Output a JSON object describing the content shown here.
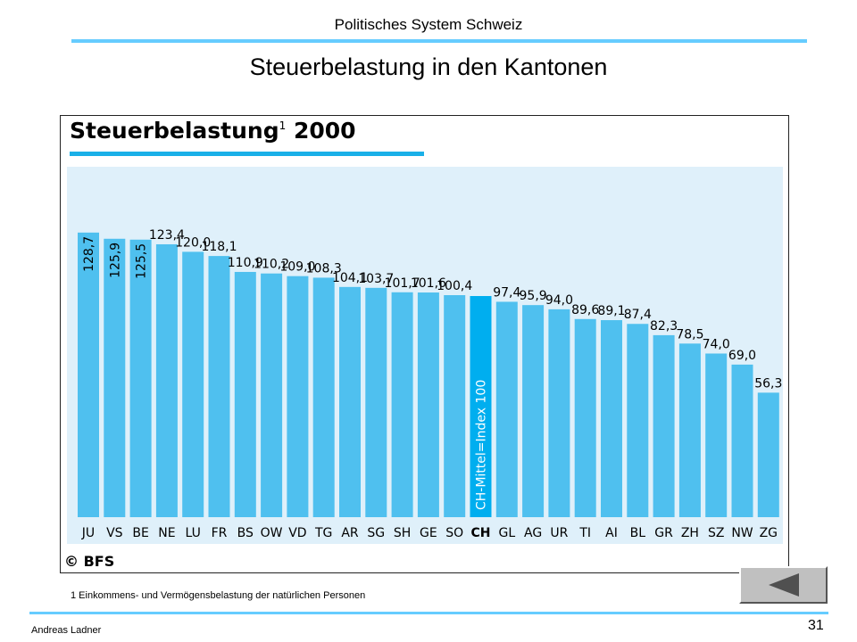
{
  "header": {
    "title": "Politisches System Schweiz"
  },
  "slide": {
    "title": "Steuerbelastung in den Kantonen"
  },
  "chart_data": {
    "type": "bar",
    "title": "Steuerbelastung",
    "title_superscript": "1",
    "title_year": "2000",
    "categories": [
      "JU",
      "VS",
      "BE",
      "NE",
      "LU",
      "FR",
      "BS",
      "OW",
      "VD",
      "TG",
      "AR",
      "SG",
      "SH",
      "GE",
      "SO",
      "CH",
      "GL",
      "AG",
      "UR",
      "TI",
      "AI",
      "BL",
      "GR",
      "ZH",
      "SZ",
      "NW",
      "ZG"
    ],
    "values": [
      128.7,
      125.9,
      125.5,
      123.4,
      120.0,
      118.1,
      110.9,
      110.2,
      109.0,
      108.3,
      104.1,
      103.7,
      101.7,
      101.6,
      100.4,
      100.0,
      97.4,
      95.9,
      94.0,
      89.6,
      89.1,
      87.4,
      82.3,
      78.5,
      74.0,
      69.0,
      56.3
    ],
    "value_labels": [
      "128,7",
      "125,9",
      "125,5",
      "123,4",
      "120,0",
      "118,1",
      "110,9",
      "110,2",
      "109,0",
      "108,3",
      "104,1",
      "103,7",
      "101,7",
      "101,6",
      "100,4",
      "",
      "97,4",
      "95,9",
      "94,0",
      "89,6",
      "89,1",
      "87,4",
      "82,3",
      "78,5",
      "74,0",
      "69,0",
      "56,3"
    ],
    "highlight_category": "CH",
    "highlight_label": "CH-Mittel=Index 100",
    "colors": {
      "bar": "#4fc0ef",
      "highlight": "#00aeef",
      "plot_bg": "#dff0fa"
    },
    "ylim": [
      0,
      135
    ],
    "grid": false,
    "legend": "none",
    "source": "© BFS"
  },
  "footnote": "1 Einkommens- und Vermögensbelastung der natürlichen Personen",
  "footer": {
    "author": "Andreas Ladner",
    "page": "31"
  },
  "nav": {
    "back_icon": "left-triangle-icon"
  }
}
